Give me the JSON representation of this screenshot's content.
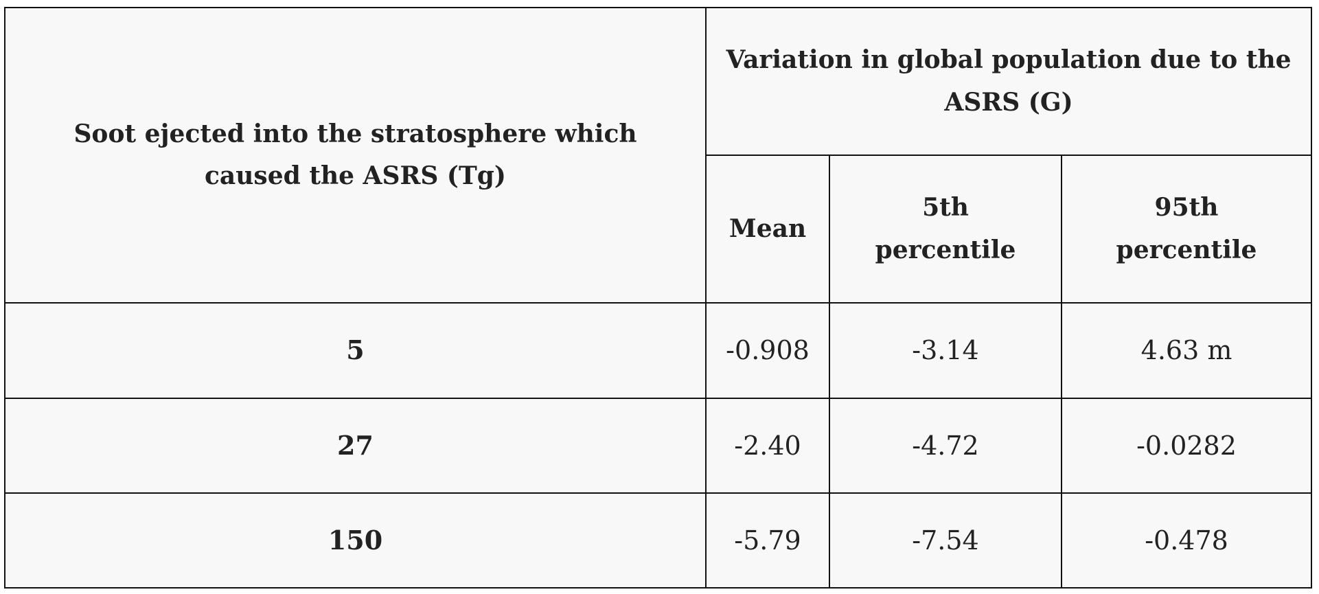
{
  "table": {
    "header": {
      "row_label": "Soot ejected into the stratosphere which caused the ASRS (Tg)",
      "group": "Variation in global population due to the ASRS (G)",
      "columns": [
        "Mean",
        "5th percentile",
        "95th percentile"
      ]
    },
    "rows": [
      [
        "5",
        "-0.908",
        "-3.14",
        "4.63 m"
      ],
      [
        "27",
        "-2.40",
        "-4.72",
        "-0.0282"
      ],
      [
        "150",
        "-5.79",
        "-7.54",
        "-0.478"
      ]
    ]
  }
}
